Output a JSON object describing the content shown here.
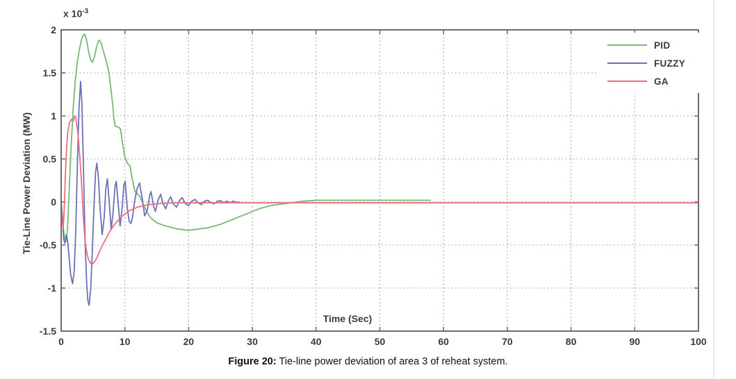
{
  "figure_caption": {
    "prefix": "Figure 20:",
    "text": " Tie-line power deviation of area 3 of reheat system."
  },
  "chart_data": {
    "type": "line",
    "title": "",
    "xlabel": "Time (Sec)",
    "ylabel": "Tie-Line Power Deviation (MW)",
    "y_scale_label": {
      "base": "x 10",
      "exponent": "-3"
    },
    "units_note": "y values expressed in 1e-3 MW",
    "xlim": [
      0,
      100
    ],
    "ylim": [
      -1.5,
      2
    ],
    "x_ticks": [
      0,
      10,
      20,
      30,
      40,
      50,
      60,
      70,
      80,
      90,
      100
    ],
    "y_ticks": [
      -1.5,
      -1,
      -0.5,
      0,
      0.5,
      1,
      1.5,
      2
    ],
    "grid": "dotted",
    "colors": {
      "pid": "#77b877",
      "fuzzy": "#6b70ba",
      "ga": "#ee6e7c",
      "axis": "#6e6e6e",
      "grid": "#8f8f8f",
      "text": "#3a3a3a"
    },
    "legend": {
      "position": "top-right",
      "entries": [
        {
          "label": "PID",
          "color": "#77b877"
        },
        {
          "label": "FUZZY",
          "color": "#6b70ba"
        },
        {
          "label": "GA",
          "color": "#ee6e7c"
        }
      ]
    },
    "series": [
      {
        "name": "PID",
        "color": "#77b877",
        "points": [
          [
            0,
            0
          ],
          [
            0.3,
            -0.28
          ],
          [
            0.55,
            -0.42
          ],
          [
            0.8,
            -0.45
          ],
          [
            1.0,
            -0.3
          ],
          [
            1.3,
            0.2
          ],
          [
            1.6,
            0.7
          ],
          [
            1.9,
            1.1
          ],
          [
            2.2,
            1.4
          ],
          [
            2.5,
            1.6
          ],
          [
            2.8,
            1.75
          ],
          [
            3.1,
            1.86
          ],
          [
            3.4,
            1.93
          ],
          [
            3.7,
            1.95
          ],
          [
            4.0,
            1.88
          ],
          [
            4.3,
            1.75
          ],
          [
            4.6,
            1.66
          ],
          [
            4.9,
            1.62
          ],
          [
            5.2,
            1.68
          ],
          [
            5.5,
            1.78
          ],
          [
            5.8,
            1.86
          ],
          [
            6.0,
            1.88
          ],
          [
            6.3,
            1.84
          ],
          [
            6.6,
            1.76
          ],
          [
            6.9,
            1.68
          ],
          [
            7.2,
            1.6
          ],
          [
            7.5,
            1.5
          ],
          [
            7.8,
            1.32
          ],
          [
            8.1,
            1.12
          ],
          [
            8.3,
            0.95
          ],
          [
            8.5,
            0.88
          ],
          [
            9.0,
            0.87
          ],
          [
            9.3,
            0.85
          ],
          [
            9.6,
            0.7
          ],
          [
            10.0,
            0.52
          ],
          [
            10.4,
            0.45
          ],
          [
            10.8,
            0.42
          ],
          [
            11.2,
            0.25
          ],
          [
            11.6,
            0.12
          ],
          [
            12.0,
            0.09
          ],
          [
            12.3,
            0.07
          ],
          [
            12.6,
            0.02
          ],
          [
            13.0,
            -0.05
          ],
          [
            13.5,
            -0.12
          ],
          [
            14.0,
            -0.18
          ],
          [
            15.0,
            -0.24
          ],
          [
            16.0,
            -0.27
          ],
          [
            17.0,
            -0.29
          ],
          [
            18.0,
            -0.31
          ],
          [
            19.0,
            -0.32
          ],
          [
            20.0,
            -0.33
          ],
          [
            21.0,
            -0.32
          ],
          [
            22.0,
            -0.31
          ],
          [
            23.0,
            -0.3
          ],
          [
            24.0,
            -0.28
          ],
          [
            25.0,
            -0.26
          ],
          [
            26.0,
            -0.23
          ],
          [
            27.0,
            -0.2
          ],
          [
            28.0,
            -0.17
          ],
          [
            29.0,
            -0.14
          ],
          [
            30.0,
            -0.11
          ],
          [
            31.0,
            -0.08
          ],
          [
            32.0,
            -0.06
          ],
          [
            33.0,
            -0.04
          ],
          [
            34.0,
            -0.03
          ],
          [
            35.0,
            -0.02
          ],
          [
            36.0,
            -0.01
          ],
          [
            37.0,
            0.0
          ],
          [
            38.0,
            0.01
          ],
          [
            40.0,
            0.02
          ],
          [
            44.0,
            0.02
          ],
          [
            48.0,
            0.02
          ],
          [
            52.0,
            0.02
          ],
          [
            56.0,
            0.02
          ],
          [
            58.0,
            0.02
          ]
        ]
      },
      {
        "name": "FUZZY",
        "color": "#6b70ba",
        "points": [
          [
            0,
            0
          ],
          [
            0.2,
            -0.18
          ],
          [
            0.4,
            -0.44
          ],
          [
            0.6,
            -0.48
          ],
          [
            0.8,
            -0.38
          ],
          [
            1.0,
            -0.45
          ],
          [
            1.25,
            -0.65
          ],
          [
            1.5,
            -0.85
          ],
          [
            1.8,
            -0.95
          ],
          [
            2.05,
            -0.8
          ],
          [
            2.3,
            -0.3
          ],
          [
            2.55,
            0.45
          ],
          [
            2.8,
            1.1
          ],
          [
            3.05,
            1.4
          ],
          [
            3.25,
            1.15
          ],
          [
            3.5,
            0.4
          ],
          [
            3.75,
            -0.45
          ],
          [
            4.0,
            -0.95
          ],
          [
            4.2,
            -1.15
          ],
          [
            4.4,
            -1.2
          ],
          [
            4.65,
            -1.0
          ],
          [
            4.9,
            -0.55
          ],
          [
            5.15,
            -0.05
          ],
          [
            5.4,
            0.35
          ],
          [
            5.6,
            0.45
          ],
          [
            5.85,
            0.28
          ],
          [
            6.15,
            -0.12
          ],
          [
            6.45,
            -0.38
          ],
          [
            6.75,
            -0.18
          ],
          [
            7.0,
            0.15
          ],
          [
            7.25,
            0.27
          ],
          [
            7.55,
            0.0
          ],
          [
            7.85,
            -0.32
          ],
          [
            8.15,
            -0.12
          ],
          [
            8.45,
            0.18
          ],
          [
            8.65,
            0.24
          ],
          [
            8.95,
            -0.02
          ],
          [
            9.25,
            -0.28
          ],
          [
            9.55,
            -0.08
          ],
          [
            9.85,
            0.2
          ],
          [
            10.05,
            0.24
          ],
          [
            10.35,
            -0.05
          ],
          [
            10.65,
            -0.22
          ],
          [
            10.95,
            -0.25
          ],
          [
            11.2,
            -0.18
          ],
          [
            11.5,
            0.0
          ],
          [
            11.9,
            0.15
          ],
          [
            12.3,
            0.22
          ],
          [
            12.7,
            0.05
          ],
          [
            13.1,
            -0.16
          ],
          [
            13.5,
            -0.1
          ],
          [
            13.9,
            0.08
          ],
          [
            14.1,
            0.12
          ],
          [
            14.5,
            -0.05
          ],
          [
            14.8,
            -0.11
          ],
          [
            15.2,
            0.02
          ],
          [
            15.6,
            0.09
          ],
          [
            16.0,
            -0.02
          ],
          [
            16.4,
            -0.08
          ],
          [
            16.8,
            0.01
          ],
          [
            17.2,
            0.06
          ],
          [
            17.6,
            -0.02
          ],
          [
            18.1,
            -0.06
          ],
          [
            18.6,
            0.02
          ],
          [
            19.0,
            0.05
          ],
          [
            19.5,
            -0.02
          ],
          [
            20.0,
            -0.04
          ],
          [
            20.5,
            0.01
          ],
          [
            21.0,
            0.03
          ],
          [
            21.5,
            -0.01
          ],
          [
            22.0,
            -0.03
          ],
          [
            22.5,
            0.01
          ],
          [
            23.0,
            0.02
          ],
          [
            23.5,
            -0.01
          ],
          [
            24.0,
            -0.02
          ],
          [
            24.5,
            0.01
          ],
          [
            25.0,
            0.015
          ],
          [
            25.5,
            -0.01
          ],
          [
            26.0,
            0.01
          ],
          [
            26.5,
            -0.01
          ],
          [
            27.0,
            0.01
          ],
          [
            27.5,
            -0.005
          ],
          [
            28.0,
            0.0
          ]
        ]
      },
      {
        "name": "GA",
        "color": "#ee6e7c",
        "points": [
          [
            0,
            0
          ],
          [
            0.15,
            -0.25
          ],
          [
            0.3,
            -0.3
          ],
          [
            0.45,
            -0.15
          ],
          [
            0.65,
            0.3
          ],
          [
            0.85,
            0.62
          ],
          [
            1.05,
            0.82
          ],
          [
            1.3,
            0.92
          ],
          [
            1.6,
            0.96
          ],
          [
            1.9,
            0.94
          ],
          [
            2.1,
            1.0
          ],
          [
            2.3,
            0.97
          ],
          [
            2.5,
            0.88
          ],
          [
            2.75,
            0.7
          ],
          [
            3.0,
            0.45
          ],
          [
            3.25,
            0.15
          ],
          [
            3.5,
            -0.2
          ],
          [
            3.75,
            -0.45
          ],
          [
            4.0,
            -0.58
          ],
          [
            4.3,
            -0.67
          ],
          [
            4.6,
            -0.71
          ],
          [
            4.9,
            -0.72
          ],
          [
            5.2,
            -0.7
          ],
          [
            5.6,
            -0.65
          ],
          [
            6.0,
            -0.58
          ],
          [
            6.5,
            -0.5
          ],
          [
            7.0,
            -0.43
          ],
          [
            7.5,
            -0.36
          ],
          [
            8.0,
            -0.3
          ],
          [
            8.5,
            -0.25
          ],
          [
            9.0,
            -0.21
          ],
          [
            9.5,
            -0.17
          ],
          [
            10.0,
            -0.14
          ],
          [
            10.5,
            -0.11
          ],
          [
            11.0,
            -0.09
          ],
          [
            11.5,
            -0.075
          ],
          [
            12.0,
            -0.06
          ],
          [
            12.5,
            -0.05
          ],
          [
            13.0,
            -0.04
          ],
          [
            13.5,
            -0.035
          ],
          [
            14.0,
            -0.03
          ],
          [
            15.0,
            -0.02
          ],
          [
            16.0,
            -0.015
          ],
          [
            17.0,
            -0.012
          ],
          [
            18.0,
            -0.01
          ],
          [
            20.0,
            -0.01
          ],
          [
            25.0,
            -0.01
          ],
          [
            30.0,
            -0.01
          ],
          [
            35.0,
            -0.01
          ],
          [
            40.0,
            -0.01
          ],
          [
            45.0,
            -0.01
          ],
          [
            50.0,
            -0.01
          ],
          [
            60.0,
            -0.01
          ],
          [
            70.0,
            -0.01
          ],
          [
            80.0,
            -0.01
          ],
          [
            90.0,
            -0.01
          ],
          [
            100.0,
            -0.01
          ]
        ]
      }
    ]
  }
}
